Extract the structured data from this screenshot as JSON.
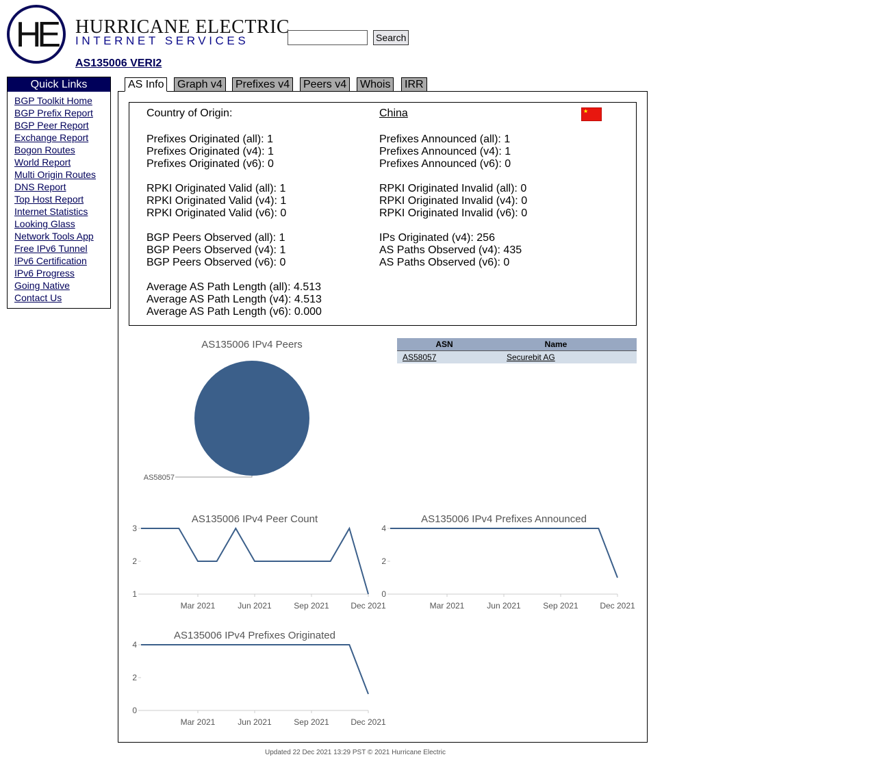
{
  "header": {
    "logo": "HE",
    "company": "HURRICANE ELECTRIC",
    "division": "INTERNET SERVICES",
    "search_button": "Search",
    "as_title": "AS135006 VERI2"
  },
  "quick_links": {
    "title": "Quick Links",
    "links": [
      "BGP Toolkit Home",
      "BGP Prefix Report",
      "BGP Peer Report",
      "Exchange Report",
      "Bogon Routes",
      "World Report",
      "Multi Origin Routes",
      "DNS Report",
      "Top Host Report",
      "Internet Statistics",
      "Looking Glass",
      "Network Tools App",
      "Free IPv6 Tunnel",
      "IPv6 Certification",
      "IPv6 Progress",
      "Going Native",
      "Contact Us"
    ]
  },
  "tabs": [
    "AS Info",
    "Graph v4",
    "Prefixes v4",
    "Peers v4",
    "Whois",
    "IRR"
  ],
  "as_info": {
    "country_label": "Country of Origin:",
    "country": "China",
    "left": [
      [
        {
          "label": "Prefixes Originated (all):",
          "value": "1"
        },
        {
          "label": "Prefixes Originated (v4):",
          "value": "1"
        },
        {
          "label": "Prefixes Originated (v6):",
          "value": "0"
        }
      ],
      [
        {
          "label": "RPKI Originated Valid (all):",
          "value": "1"
        },
        {
          "label": "RPKI Originated Valid (v4):",
          "value": "1"
        },
        {
          "label": "RPKI Originated Valid (v6):",
          "value": "0"
        }
      ],
      [
        {
          "label": "BGP Peers Observed (all):",
          "value": "1"
        },
        {
          "label": "BGP Peers Observed (v4):",
          "value": "1"
        },
        {
          "label": "BGP Peers Observed (v6):",
          "value": "0"
        }
      ],
      [
        {
          "label": "Average AS Path Length (all):",
          "value": "4.513"
        },
        {
          "label": "Average AS Path Length (v4):",
          "value": "4.513"
        },
        {
          "label": "Average AS Path Length (v6):",
          "value": "0.000"
        }
      ]
    ],
    "right": [
      [
        {
          "label": "Prefixes Announced (all):",
          "value": "1"
        },
        {
          "label": "Prefixes Announced (v4):",
          "value": "1"
        },
        {
          "label": "Prefixes Announced (v6):",
          "value": "0"
        }
      ],
      [
        {
          "label": "RPKI Originated Invalid (all):",
          "value": "0"
        },
        {
          "label": "RPKI Originated Invalid (v4):",
          "value": "0"
        },
        {
          "label": "RPKI Originated Invalid (v6):",
          "value": "0"
        }
      ],
      [
        {
          "label": "IPs Originated (v4):",
          "value": "256"
        },
        {
          "label": "AS Paths Observed (v4):",
          "value": "435"
        },
        {
          "label": "AS Paths Observed (v6):",
          "value": "0"
        }
      ]
    ]
  },
  "peers_table": {
    "header": [
      "ASN",
      "Name"
    ],
    "rows": [
      [
        "AS58057",
        "Securebit AG"
      ]
    ]
  },
  "charts": [
    {
      "type": "pie",
      "title": "AS135006 IPv4 Peers",
      "categories": [
        "AS58057"
      ],
      "values": [
        100
      ],
      "color": "#3b5f8a"
    },
    {
      "type": "line",
      "title": "AS135006 IPv4 Peer Count",
      "color": "#3b5f8a",
      "x": [
        "2020-12",
        "2021-01",
        "2021-02",
        "2021-03",
        "2021-04",
        "2021-05",
        "2021-06",
        "2021-07",
        "2021-08",
        "2021-09",
        "2021-10",
        "2021-11",
        "2021-12"
      ],
      "values": [
        3,
        3,
        3,
        2,
        2,
        3,
        2,
        2,
        2,
        2,
        2,
        3,
        1
      ],
      "xlim": [
        "2020-12",
        "2021-12"
      ],
      "xticks": [
        {
          "value": "2021-03",
          "label": "Mar 2021"
        },
        {
          "value": "2021-06",
          "label": "Jun 2021"
        },
        {
          "value": "2021-09",
          "label": "Sep 2021"
        },
        {
          "value": "2021-12",
          "label": "Dec 2021"
        }
      ],
      "ylim": [
        1,
        3
      ],
      "yticks": [
        1,
        2,
        3
      ]
    },
    {
      "type": "line",
      "title": "AS135006 IPv4 Prefixes Announced",
      "color": "#3b5f8a",
      "x": [
        "2020-12",
        "2021-01",
        "2021-02",
        "2021-03",
        "2021-04",
        "2021-05",
        "2021-06",
        "2021-07",
        "2021-08",
        "2021-09",
        "2021-10",
        "2021-11",
        "2021-12"
      ],
      "values": [
        4,
        4,
        4,
        4,
        4,
        4,
        4,
        4,
        4,
        4,
        4,
        4,
        1
      ],
      "xlim": [
        "2020-12",
        "2021-12"
      ],
      "xticks": [
        {
          "value": "2021-03",
          "label": "Mar 2021"
        },
        {
          "value": "2021-06",
          "label": "Jun 2021"
        },
        {
          "value": "2021-09",
          "label": "Sep 2021"
        },
        {
          "value": "2021-12",
          "label": "Dec 2021"
        }
      ],
      "ylim": [
        0,
        4
      ],
      "yticks": [
        0,
        2,
        4
      ]
    },
    {
      "type": "line",
      "title": "AS135006 IPv4 Prefixes Originated",
      "color": "#3b5f8a",
      "x": [
        "2020-12",
        "2021-01",
        "2021-02",
        "2021-03",
        "2021-04",
        "2021-05",
        "2021-06",
        "2021-07",
        "2021-08",
        "2021-09",
        "2021-10",
        "2021-11",
        "2021-12"
      ],
      "values": [
        4,
        4,
        4,
        4,
        4,
        4,
        4,
        4,
        4,
        4,
        4,
        4,
        1
      ],
      "xlim": [
        "2020-12",
        "2021-12"
      ],
      "xticks": [
        {
          "value": "2021-03",
          "label": "Mar 2021"
        },
        {
          "value": "2021-06",
          "label": "Jun 2021"
        },
        {
          "value": "2021-09",
          "label": "Sep 2021"
        },
        {
          "value": "2021-12",
          "label": "Dec 2021"
        }
      ],
      "ylim": [
        0,
        4
      ],
      "yticks": [
        0,
        2,
        4
      ]
    }
  ],
  "footer": "Updated 22 Dec 2021 13:29 PST © 2021 Hurricane Electric"
}
